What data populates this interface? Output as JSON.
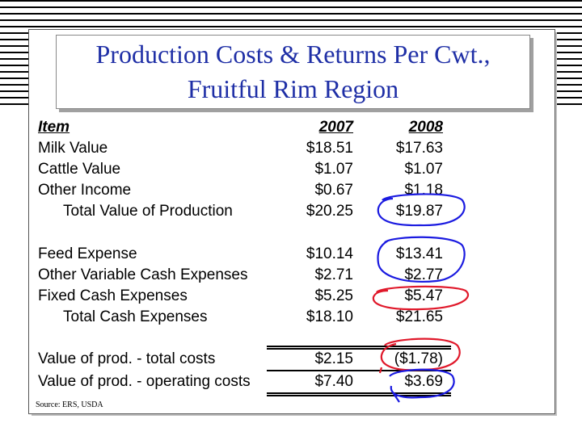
{
  "title": {
    "line1": "Production Costs & Returns Per Cwt.,",
    "line2": "Fruitful Rim Region"
  },
  "table": {
    "header": {
      "item": "Item",
      "y1": "2007",
      "y2": "2008"
    },
    "rows": [
      {
        "label": "Milk Value",
        "v2007": "$18.51",
        "v2008": "$17.63"
      },
      {
        "label": "Cattle Value",
        "v2007": "$1.07",
        "v2008": "$1.07"
      },
      {
        "label": "Other Income",
        "v2007": "$0.67",
        "v2008": "$1.18"
      },
      {
        "label": "Total Value of Production",
        "v2007": "$20.25",
        "v2008": "$19.87"
      },
      {
        "label": "Feed Expense",
        "v2007": "$10.14",
        "v2008": "$13.41"
      },
      {
        "label": "Other Variable Cash Expenses",
        "v2007": "$2.71",
        "v2008": "$2.77"
      },
      {
        "label": "Fixed Cash Expenses",
        "v2007": "$5.25",
        "v2008": "$5.47"
      },
      {
        "label": "Total Cash Expenses",
        "v2007": "$18.10",
        "v2008": "$21.65"
      },
      {
        "label": "Value of prod. - total costs",
        "v2007": "$2.15",
        "v2008": "($1.78)"
      },
      {
        "label": "Value of prod. - operating costs",
        "v2007": "$7.40",
        "v2008": "$3.69"
      }
    ]
  },
  "source": "Source: ERS, USDA",
  "colors": {
    "title": "#1f2fa6",
    "ink_blue": "#1a1ae0",
    "ink_red": "#e0182a"
  }
}
